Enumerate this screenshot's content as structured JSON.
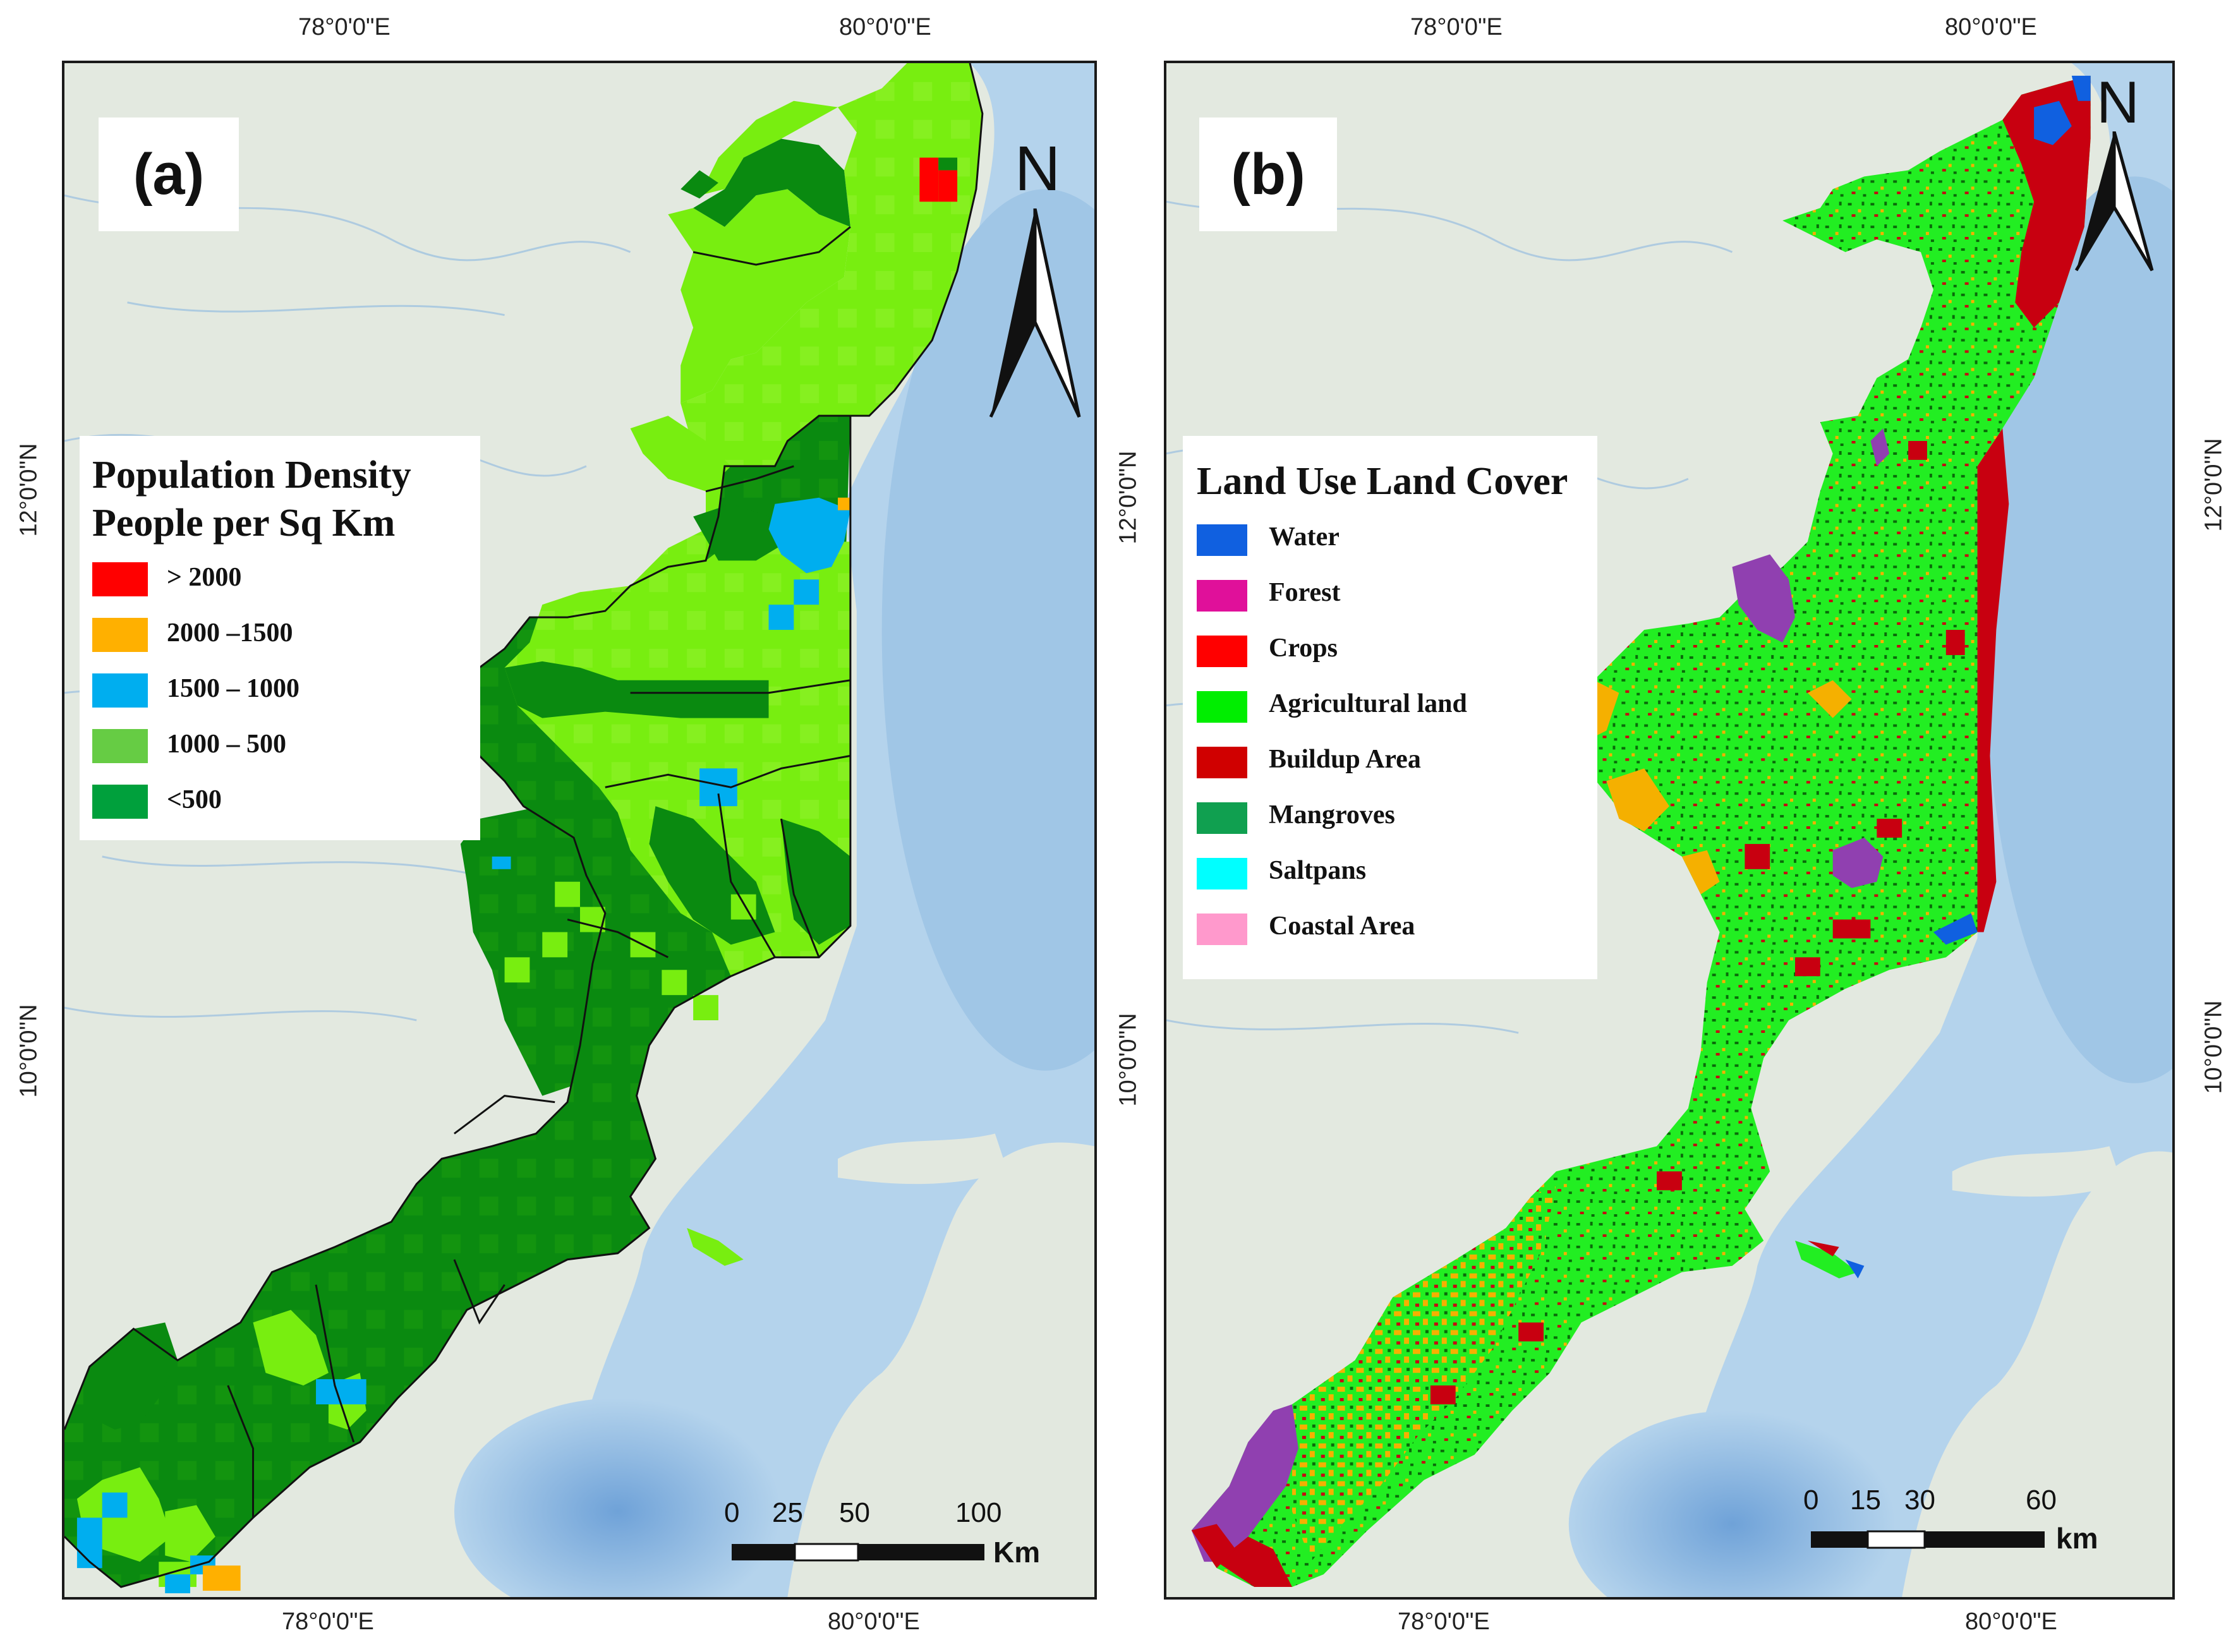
{
  "panel_a": {
    "label": "(a)",
    "legend": {
      "title_line1": "Population Density",
      "title_line2": "People per Sq Km",
      "items": [
        {
          "label": "> 2000",
          "color": "#ff0000"
        },
        {
          "label": "2000 –1500",
          "color": "#ffb000"
        },
        {
          "label": "1500 – 1000",
          "color": "#00aeef"
        },
        {
          "label": "1000 – 500",
          "color": "#66cc44"
        },
        {
          "label": "<500",
          "color": "#00a03c"
        }
      ]
    },
    "north": "N",
    "scale": {
      "ticks": [
        "0",
        "25",
        "50",
        "100"
      ],
      "unit": "Km"
    },
    "lon_ticks_top": [
      "78°0'0\"E",
      "80°0'0\"E"
    ],
    "lon_ticks_bottom": [
      "78°0'0\"E",
      "80°0'0\"E"
    ],
    "lat_ticks_left": [
      "12°0'0\"N",
      "10°0'0\"N"
    ]
  },
  "panel_b": {
    "label": "(b)",
    "legend": {
      "title": "Land Use Land Cover",
      "items": [
        {
          "label": "Water",
          "color": "#1060e0"
        },
        {
          "label": "Forest",
          "color": "#e0109a"
        },
        {
          "label": "Crops",
          "color": "#ff0000"
        },
        {
          "label": "Agricultural land",
          "color": "#00ee00"
        },
        {
          "label": "Buildup Area",
          "color": "#d00000"
        },
        {
          "label": "Mangroves",
          "color": "#10a050"
        },
        {
          "label": "Saltpans",
          "color": "#00ffff"
        },
        {
          "label": "Coastal Area",
          "color": "#ff99cc"
        }
      ]
    },
    "north": "N",
    "scale": {
      "ticks": [
        "0",
        "15",
        "30",
        "60"
      ],
      "unit": "km"
    },
    "lon_ticks_top": [
      "78°0'0\"E",
      "80°0'0\"E"
    ],
    "lon_ticks_bottom": [
      "78°0'0\"E",
      "80°0'0\"E"
    ],
    "lat_ticks_left": [
      "12°0'0\"N",
      "10°0'0\"N"
    ],
    "lat_ticks_right": [
      "12°0'0\"N",
      "10°0'0\"N"
    ]
  },
  "colors": {
    "land": "#e2e8df",
    "sea": "#b4d3ec",
    "deep_sea": "#8fb9df",
    "dense_green": "#0a8a10",
    "light_green": "#78ee10",
    "agri_green": "#22ee22",
    "buildup": "#c80010",
    "orange": "#f5b000",
    "purple": "#9040b0"
  }
}
